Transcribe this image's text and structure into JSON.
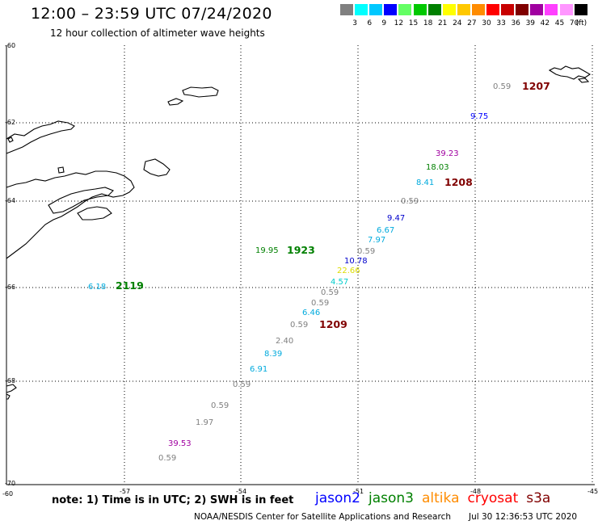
{
  "header": {
    "title": "12:00 – 23:59 UTC 07/24/2020",
    "subtitle": "12 hour collection of altimeter wave heights"
  },
  "scale": {
    "unit": "(ft)",
    "colors": [
      "#808080",
      "#00ffff",
      "#00c8ff",
      "#0000ff",
      "#64ff64",
      "#00c800",
      "#008000",
      "#ffff00",
      "#ffc800",
      "#ff8c00",
      "#ff0000",
      "#c80000",
      "#800000",
      "#a000a0",
      "#ff40ff",
      "#ff96ff",
      "#000000"
    ],
    "labels": [
      "3",
      "6",
      "9",
      "12",
      "15",
      "18",
      "21",
      "24",
      "27",
      "30",
      "33",
      "36",
      "39",
      "42",
      "45",
      "70"
    ]
  },
  "axes": {
    "lon_labels": [
      "-57",
      "-54",
      "-51",
      "-48",
      "-45"
    ],
    "lat_labels": [
      "-60",
      "-62",
      "-64",
      "-66",
      "-68",
      "-70"
    ],
    "corner_label": "-60"
  },
  "observations": [
    {
      "text": "0.59",
      "color": "#808080"
    },
    {
      "text": "1207",
      "color": "#800000",
      "bold": true
    },
    {
      "text": "9.75",
      "color": "#0000ff"
    },
    {
      "text": "39.23",
      "color": "#a000a0"
    },
    {
      "text": "18.03",
      "color": "#008000"
    },
    {
      "text": "8.41",
      "color": "#00aadd"
    },
    {
      "text": "1208",
      "color": "#800000",
      "bold": true
    },
    {
      "text": "0.59",
      "color": "#808080"
    },
    {
      "text": "9.47",
      "color": "#0000cc"
    },
    {
      "text": "6.67",
      "color": "#00aadd"
    },
    {
      "text": "7.97",
      "color": "#00aadd"
    },
    {
      "text": "0.59",
      "color": "#808080"
    },
    {
      "text": "10.78",
      "color": "#0000cc"
    },
    {
      "text": "22.66",
      "color": "#dddd00"
    },
    {
      "text": "4.57",
      "color": "#00cccc"
    },
    {
      "text": "0.59",
      "color": "#808080"
    },
    {
      "text": "0.59",
      "color": "#808080"
    },
    {
      "text": "6.46",
      "color": "#00aadd"
    },
    {
      "text": "0.59",
      "color": "#808080"
    },
    {
      "text": "1209",
      "color": "#800000",
      "bold": true
    },
    {
      "text": "2.40",
      "color": "#808080"
    },
    {
      "text": "8.39",
      "color": "#00aadd"
    },
    {
      "text": "6.91",
      "color": "#00aadd"
    },
    {
      "text": "0.59",
      "color": "#808080"
    },
    {
      "text": "0.59",
      "color": "#808080"
    },
    {
      "text": "1.97",
      "color": "#808080"
    },
    {
      "text": "39.53",
      "color": "#a000a0"
    },
    {
      "text": "0.59",
      "color": "#808080"
    },
    {
      "text": "19.95",
      "color": "#008000"
    },
    {
      "text": "1923",
      "color": "#008000",
      "bold": true
    },
    {
      "text": "6.18",
      "color": "#00aadd"
    },
    {
      "text": "2119",
      "color": "#008000",
      "bold": true
    }
  ],
  "footer": {
    "note": "note:  1) Time is in UTC;  2) SWH is in feet",
    "legend": [
      {
        "label": "jason2",
        "color": "#0000ff"
      },
      {
        "label": "jason3",
        "color": "#008000"
      },
      {
        "label": "altika",
        "color": "#ff8c00"
      },
      {
        "label": "cryosat",
        "color": "#ff0000"
      },
      {
        "label": "s3a",
        "color": "#800000"
      }
    ],
    "org": "NOAA/NESDIS Center for Satellite Applications and Research",
    "date": "Jul 30 12:36:53 UTC 2020"
  }
}
